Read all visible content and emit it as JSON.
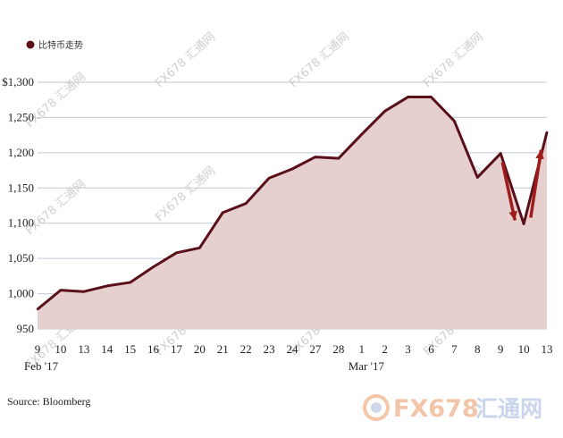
{
  "chart_data": {
    "type": "area",
    "legend": "比特币走势",
    "legend_position": "top-left",
    "source": "Source: Bloomberg",
    "x": [
      "9",
      "10",
      "13",
      "14",
      "15",
      "16",
      "17",
      "20",
      "21",
      "22",
      "23",
      "24",
      "27",
      "28",
      "1",
      "2",
      "3",
      "6",
      "7",
      "8",
      "9",
      "10",
      "13"
    ],
    "month_labels": [
      {
        "label": "Feb '17",
        "at": "9"
      },
      {
        "label": "Mar '17",
        "at": "1"
      }
    ],
    "series": [
      {
        "values": [
          978,
          1005,
          1003,
          1011,
          1016,
          1038,
          1058,
          1065,
          1115,
          1128,
          1164,
          1177,
          1194,
          1192,
          1226,
          1259,
          1279,
          1279,
          1245,
          1165,
          1199,
          1099,
          1229
        ]
      }
    ],
    "y_ticks": [
      "$1,300",
      "1,250",
      "1,200",
      "1,150",
      "1,100",
      "1,050",
      "1,000",
      "950"
    ],
    "y_tick_values": [
      1300,
      1250,
      1200,
      1150,
      1100,
      1050,
      1000,
      950
    ],
    "ylim": [
      950,
      1300
    ],
    "grid": "horizontal",
    "colors": {
      "line": "#5a1018",
      "fill": "#e5cfcf",
      "arrow": "#a01c1c",
      "grid": "#bfc9d6"
    },
    "annotations": [
      {
        "kind": "arrow-down",
        "from_x": "9",
        "to_x": "10"
      },
      {
        "kind": "arrow-up",
        "from_x": "10",
        "to_x": "13"
      }
    ]
  },
  "watermark": {
    "text": "FX678 汇通网",
    "brand_text": "FX678",
    "brand_cn": "汇通网"
  }
}
